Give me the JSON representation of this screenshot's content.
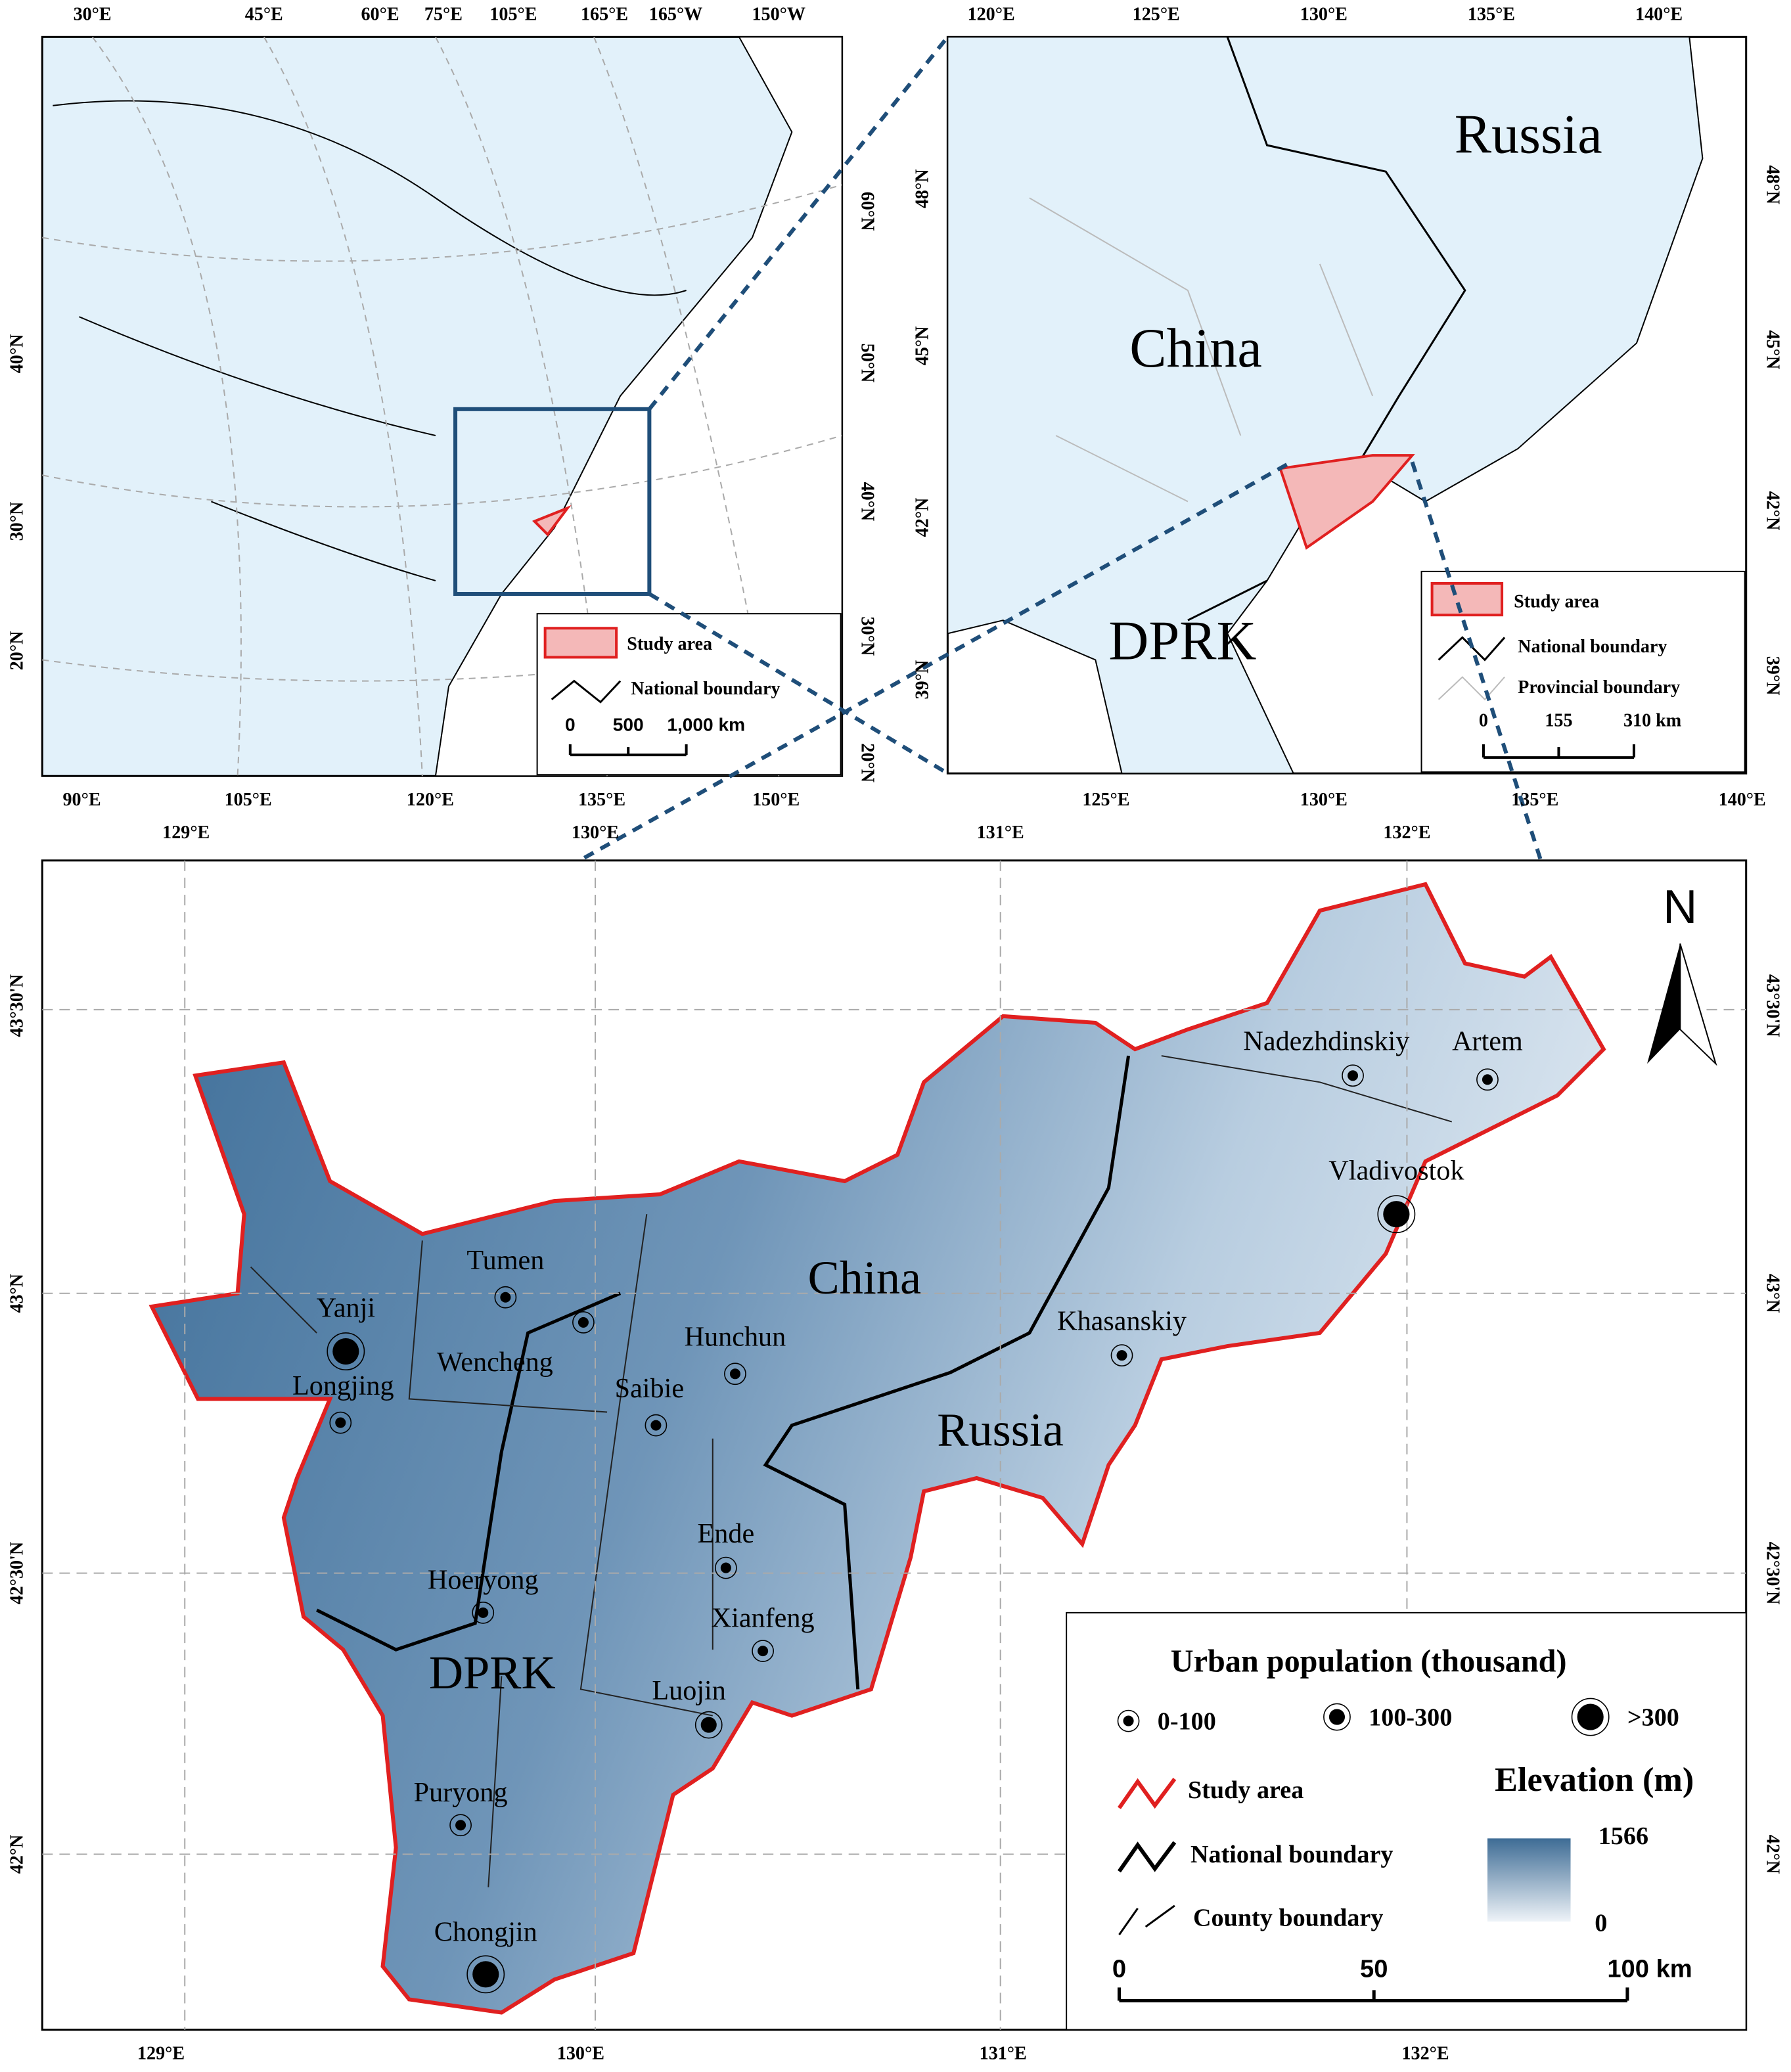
{
  "overview_map": {
    "top_ticks": [
      "30°E",
      "45°E",
      "60°E",
      "75°E",
      "105°E",
      "165°E",
      "165°W",
      "150°W"
    ],
    "bottom_ticks": [
      "90°E",
      "105°E",
      "120°E",
      "135°E",
      "150°E"
    ],
    "left_ticks": [
      "40°N",
      "30°N",
      "20°N"
    ],
    "right_ticks": [
      "60°N",
      "50°N",
      "40°N",
      "30°N",
      "20°N"
    ],
    "legend": {
      "study_area": "Study area",
      "national_boundary": "National boundary",
      "scale": [
        "0",
        "500",
        "1,000 km"
      ]
    }
  },
  "regional_map": {
    "top_ticks": [
      "120°E",
      "125°E",
      "130°E",
      "135°E",
      "140°E"
    ],
    "bottom_ticks": [
      "125°E",
      "130°E",
      "135°E",
      "140°E"
    ],
    "left_ticks": [
      "48°N",
      "45°N",
      "42°N",
      "39°N"
    ],
    "right_ticks": [
      "48°N",
      "45°N",
      "42°N",
      "39°N"
    ],
    "labels": [
      "Russia",
      "China",
      "DPRK"
    ],
    "legend": {
      "study_area": "Study area",
      "national_boundary": "National boundary",
      "provincial_boundary": "Provincial boundary",
      "scale": [
        "0",
        "155",
        "310 km"
      ]
    }
  },
  "study_map": {
    "top_ticks": [
      "129°E",
      "130°E",
      "131°E",
      "132°E"
    ],
    "bottom_ticks": [
      "129°E",
      "130°E",
      "131°E",
      "132°E"
    ],
    "left_ticks": [
      "43°30'N",
      "43°N",
      "42°30'N",
      "42°N"
    ],
    "right_ticks": [
      "43°30'N",
      "43°N",
      "42°30'N",
      "42°N"
    ],
    "north": "N",
    "countries": [
      "China",
      "Russia",
      "DPRK"
    ],
    "cities": [
      "Yanji",
      "Tumen",
      "Wencheng",
      "Longjing",
      "Hunchun",
      "Saibie",
      "Ende",
      "Xianfeng",
      "Hoeryong",
      "Luojin",
      "Puryong",
      "Chongjin",
      "Khasanskiy",
      "Nadezhdinskiy",
      "Artem",
      "Vladivostok"
    ],
    "legend": {
      "title": "Urban population (thousand)",
      "classes": [
        "0-100",
        "100-300",
        ">300"
      ],
      "study_area": "Study area",
      "national_boundary": "National boundary",
      "county_boundary": "County boundary",
      "elevation_title": "Elevation (m)",
      "elevation_max": 1566,
      "elevation_min": 0,
      "scale": [
        "0",
        "50",
        "100 km"
      ]
    }
  }
}
